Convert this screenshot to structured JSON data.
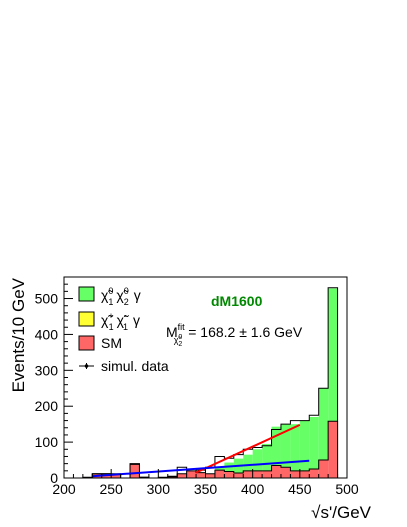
{
  "chart_data": {
    "type": "bar",
    "xlabel": "√s'/GeV",
    "ylabel": "Events/10 GeV",
    "xlim": [
      200,
      500
    ],
    "ylim": [
      0,
      560
    ],
    "xticks": [
      200,
      250,
      300,
      350,
      400,
      450,
      500
    ],
    "yticks": [
      0,
      100,
      200,
      300,
      400,
      500
    ],
    "bin_width": 10,
    "bin_edges_start": 200,
    "legend_placement": "top-left",
    "legend": [
      {
        "label_main": "χ̃",
        "sup1": "0",
        "sub1": "1",
        "label2": "χ̃",
        "sup2": "0",
        "sub2": "2",
        "suffix": "γ",
        "color": "#66ff66"
      },
      {
        "label_main": "χ̃",
        "sup1": "+",
        "sub1": "1",
        "label2": "χ̃",
        "sup2": "-",
        "sub2": "1",
        "suffix": "γ",
        "color": "#ffff33"
      },
      {
        "label": "SM",
        "color": "#ff6666"
      },
      {
        "label": "simul. data",
        "marker": "point"
      }
    ],
    "annotations": {
      "model": "dM1600",
      "fit_prefix": "M",
      "fit_sup": "fit",
      "fit_sub_main": "χ̃",
      "fit_sub_sup": "0",
      "fit_sub_sub": "2",
      "fit_value": "= 168.2 ± 1.6 GeV"
    },
    "series": [
      {
        "name": "SM",
        "color": "#ff6666",
        "values": [
          0,
          0,
          0,
          12,
          12,
          10,
          0,
          38,
          2,
          0,
          0,
          3,
          12,
          20,
          15,
          12,
          22,
          18,
          14,
          20,
          20,
          20,
          35,
          30,
          20,
          20,
          25,
          50,
          158
        ]
      },
      {
        "name": "chi1+ chi1- gamma",
        "color": "#ffff33",
        "values": [
          0,
          0,
          0,
          0,
          0,
          0,
          0,
          0,
          0,
          0,
          0,
          0,
          0,
          0,
          0,
          0,
          0,
          0,
          0,
          0,
          0,
          0,
          0,
          0,
          0,
          0,
          0,
          0,
          0
        ]
      },
      {
        "name": "chi1^0 chi2^0 gamma",
        "color": "#66ff66",
        "values": [
          0,
          0,
          0,
          0,
          0,
          0,
          0,
          0,
          0,
          0,
          0,
          0,
          0,
          0,
          0,
          0,
          10,
          25,
          40,
          45,
          60,
          75,
          108,
          120,
          130,
          140,
          145,
          200,
          370
        ]
      }
    ],
    "data": [
      0,
      0,
      2,
      12,
      12,
      12,
      0,
      40,
      2,
      0,
      2,
      5,
      30,
      25,
      22,
      30,
      60,
      55,
      65,
      80,
      85,
      90,
      135,
      150,
      160,
      160,
      175,
      250,
      530
    ],
    "fit_lines": [
      {
        "color": "#ff0000",
        "x": [
          340,
          450
        ],
        "y": [
          15,
          148
        ]
      },
      {
        "color": "#0000ff",
        "x": [
          230,
          460
        ],
        "y": [
          5,
          48
        ]
      }
    ]
  }
}
